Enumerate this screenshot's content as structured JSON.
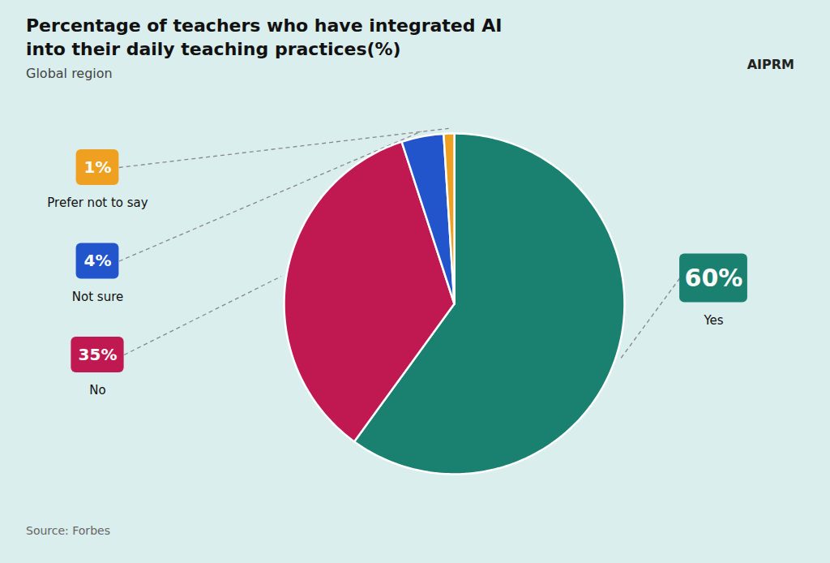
{
  "chart_data": {
    "type": "pie",
    "title": "Percentage of teachers who have integrated AI\ninto their daily teaching practices(%)",
    "subtitle": "Global region",
    "source": "Source: Forbes",
    "annotations": [
      "AIPRM"
    ],
    "categories": [
      "Yes",
      "No",
      "Not sure",
      "Prefer not to say"
    ],
    "values": [
      60,
      35,
      4,
      1
    ],
    "value_labels": [
      "60%",
      "35%",
      "4%",
      "1%"
    ],
    "colors": [
      "#1a8070",
      "#c01850",
      "#2255cc",
      "#f0a020"
    ],
    "data_labels": true
  }
}
